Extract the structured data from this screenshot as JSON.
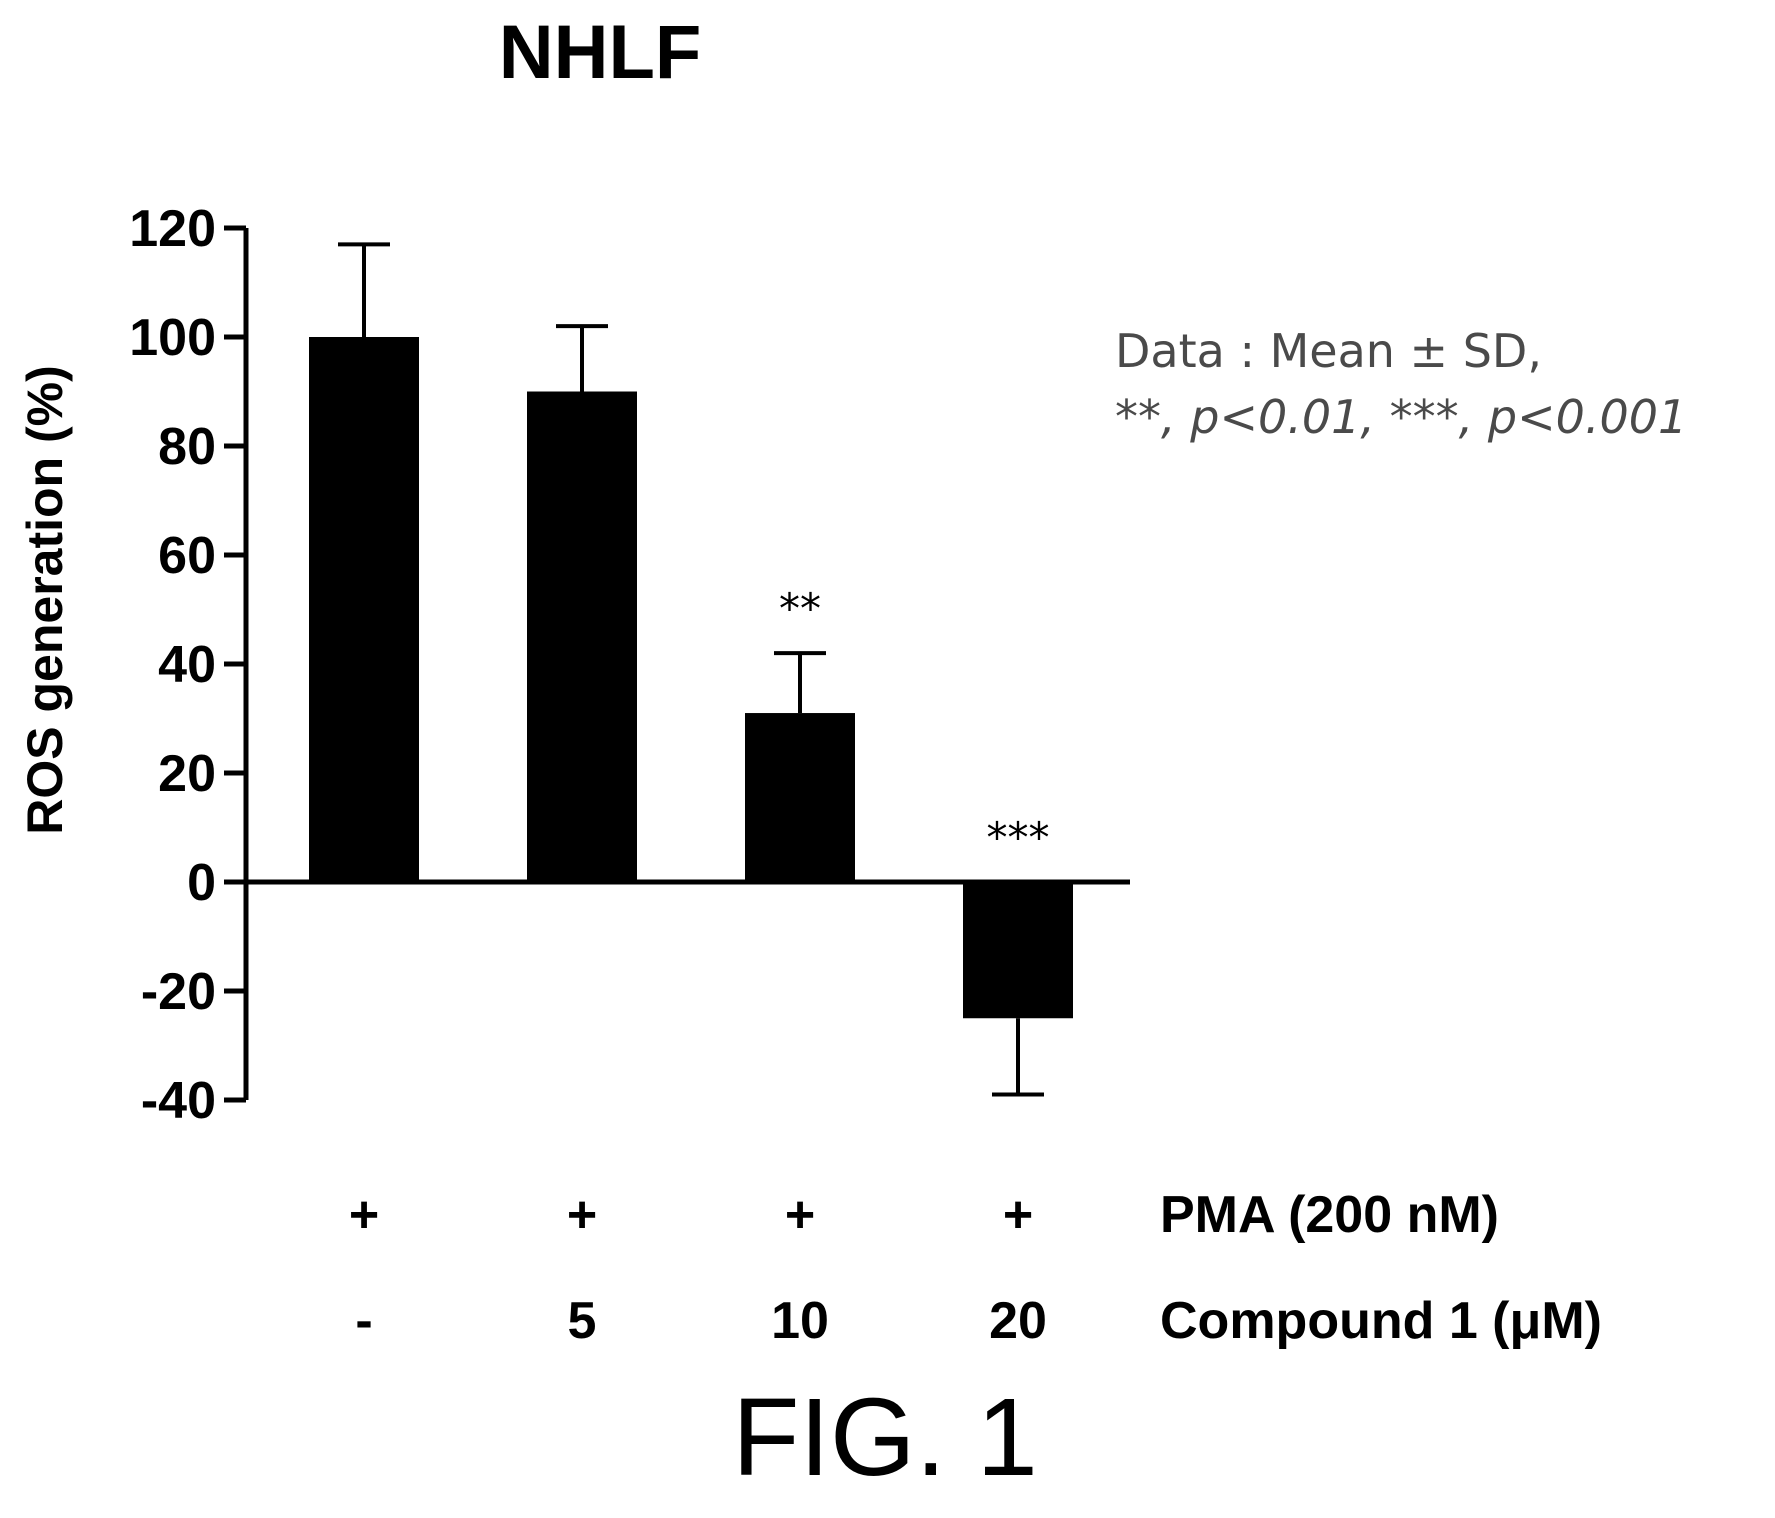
{
  "chart_data": {
    "type": "bar",
    "title": "NHLF",
    "ylabel": "ROS generation (%)",
    "xlabel": "",
    "ylim": [
      -40,
      120
    ],
    "yticks": [
      120,
      100,
      80,
      60,
      40,
      20,
      0,
      -20,
      -40
    ],
    "categories": [
      "-",
      "5",
      "10",
      "20"
    ],
    "values": [
      100,
      90,
      31,
      -25
    ],
    "errors": [
      17,
      12,
      11,
      14
    ],
    "significance": [
      "",
      "",
      "**",
      "***"
    ],
    "bar_color": "#000000",
    "conditions": [
      {
        "label": "PMA (200 nM)",
        "values": [
          "+",
          "+",
          "+",
          "+"
        ]
      },
      {
        "label": "Compound 1 (μM)",
        "values": [
          "-",
          "5",
          "10",
          "20"
        ]
      }
    ],
    "annotation": {
      "line1": "Data : Mean ± SD,",
      "line2": "**, p<0.01, ***, p<0.001"
    },
    "grid": false
  },
  "figure_label": "FIG. 1"
}
